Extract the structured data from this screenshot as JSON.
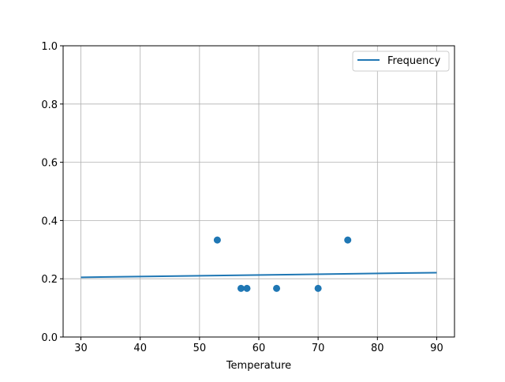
{
  "chart_data": {
    "type": "scatter",
    "title": "",
    "xlabel": "Temperature",
    "ylabel": "",
    "xlim": [
      27,
      93
    ],
    "ylim": [
      0,
      1.0
    ],
    "grid": true,
    "legend_position": "top-right",
    "x_ticks": [
      "30",
      "40",
      "50",
      "60",
      "70",
      "80",
      "90"
    ],
    "y_ticks": [
      "0.0",
      "0.2",
      "0.4",
      "0.6",
      "0.8",
      "1.0"
    ],
    "color": "#1f77b4",
    "scatter_points": [
      {
        "x": 53,
        "y": 0.333
      },
      {
        "x": 57,
        "y": 0.167
      },
      {
        "x": 58,
        "y": 0.167
      },
      {
        "x": 63,
        "y": 0.167
      },
      {
        "x": 70,
        "y": 0.167
      },
      {
        "x": 75,
        "y": 0.333
      }
    ],
    "series": [
      {
        "name": "Frequency",
        "type": "line",
        "x": [
          30,
          90
        ],
        "y": [
          0.205,
          0.221
        ]
      }
    ]
  }
}
